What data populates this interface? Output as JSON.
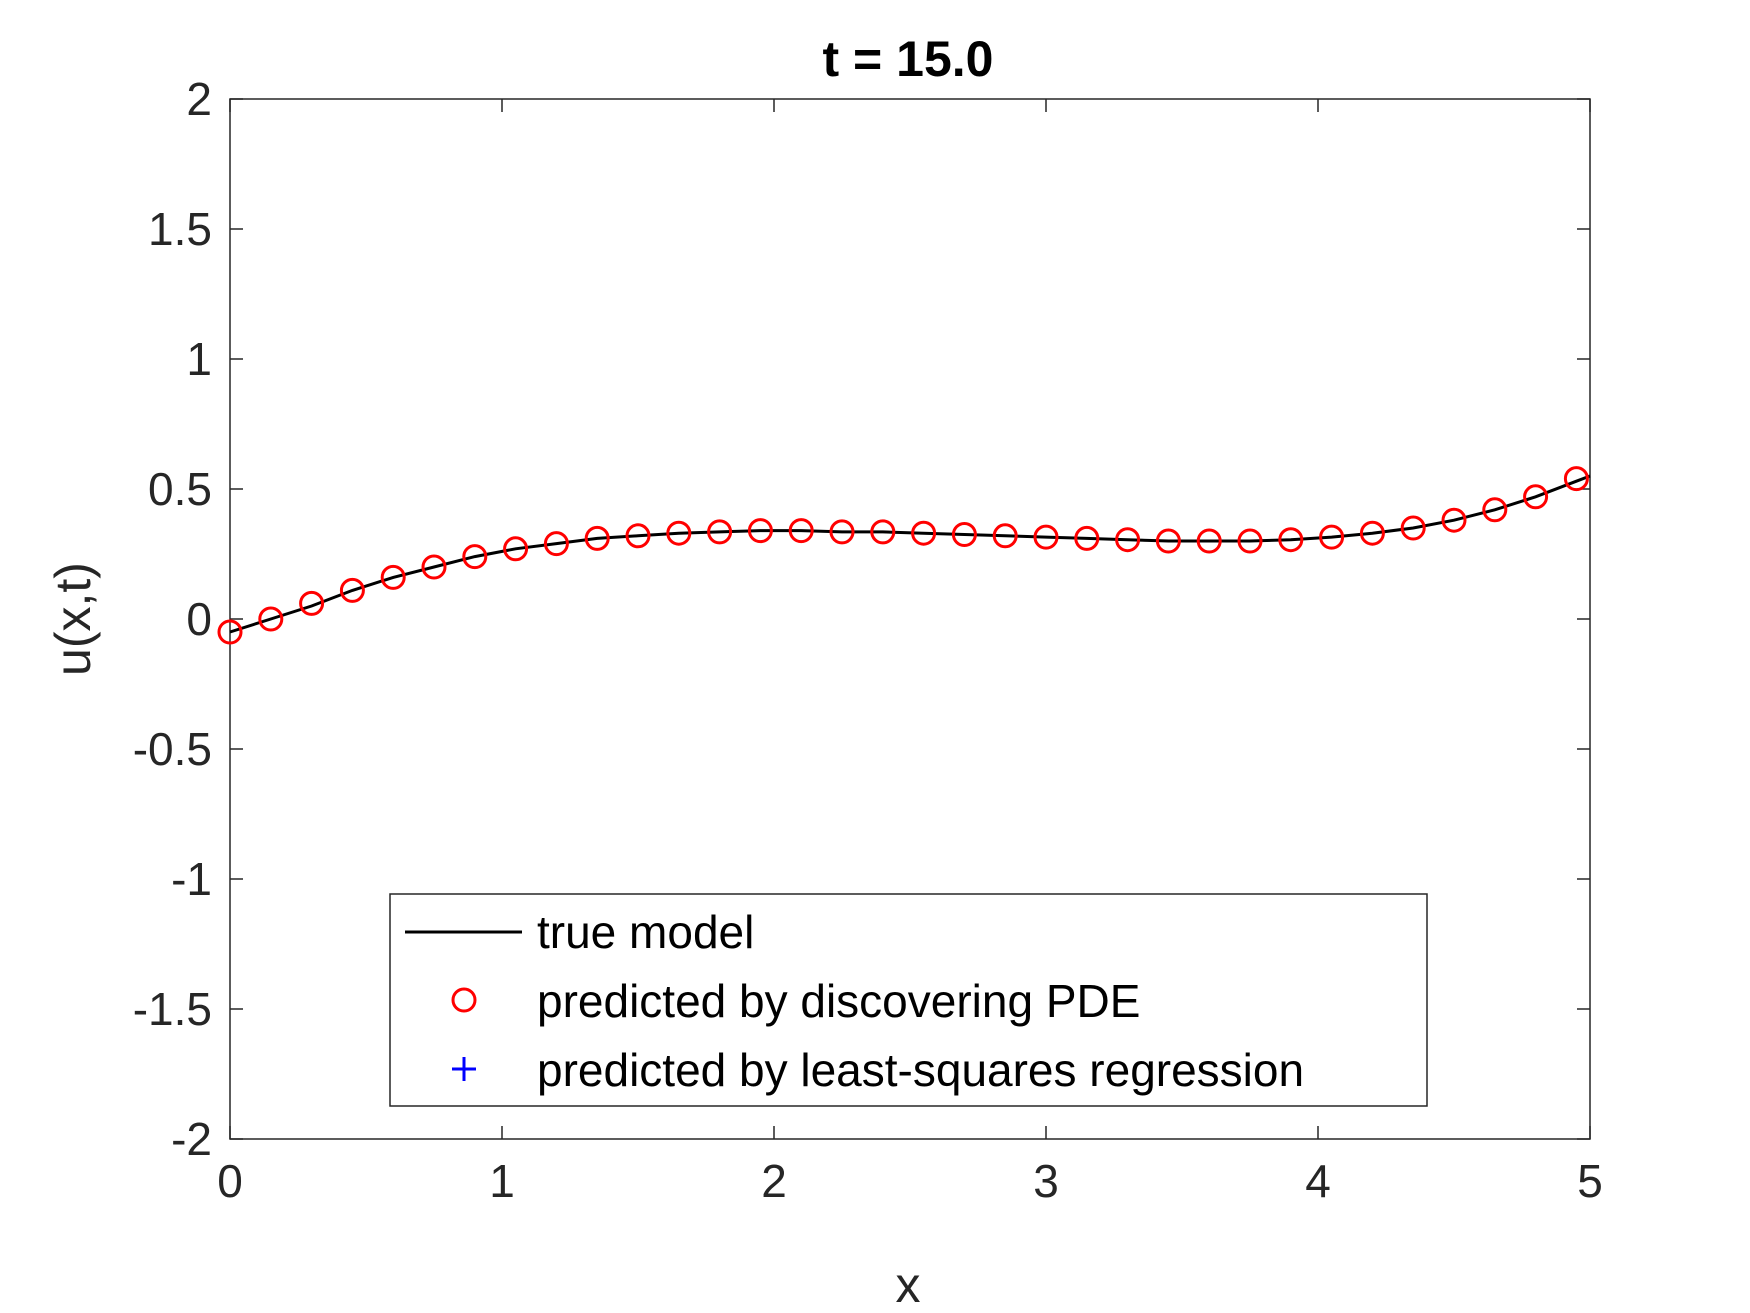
{
  "chart_data": {
    "type": "line",
    "title": "t = 15.0",
    "xlabel": "x",
    "ylabel": "u(x,t)",
    "xlim": [
      0,
      5
    ],
    "ylim": [
      -2,
      2
    ],
    "xticks": [
      0,
      1,
      2,
      3,
      4,
      5
    ],
    "xtick_labels": [
      "0",
      "1",
      "2",
      "3",
      "4",
      "5"
    ],
    "yticks": [
      -2,
      -1.5,
      -1,
      -0.5,
      0,
      0.5,
      1,
      1.5,
      2
    ],
    "ytick_labels": [
      "-2",
      "-1.5",
      "-1",
      "-0.5",
      "0",
      "0.5",
      "1",
      "1.5",
      "2"
    ],
    "grid": false,
    "legend_position": "bottom-center",
    "colors": {
      "true_model": "#000000",
      "discovered_pde": "#ff0000",
      "least_squares": "#0000ff"
    },
    "series": [
      {
        "name": "true model",
        "style": "line",
        "x": [
          0,
          0.15,
          0.3,
          0.45,
          0.6,
          0.75,
          0.9,
          1.05,
          1.2,
          1.35,
          1.5,
          1.65,
          1.8,
          1.95,
          2.1,
          2.25,
          2.4,
          2.55,
          2.7,
          2.85,
          3.0,
          3.15,
          3.3,
          3.45,
          3.6,
          3.75,
          3.9,
          4.05,
          4.2,
          4.35,
          4.5,
          4.65,
          4.8,
          4.95,
          5.0
        ],
        "y": [
          -0.05,
          0.0,
          0.05,
          0.11,
          0.16,
          0.2,
          0.24,
          0.27,
          0.29,
          0.31,
          0.32,
          0.33,
          0.335,
          0.34,
          0.34,
          0.335,
          0.335,
          0.33,
          0.325,
          0.32,
          0.315,
          0.31,
          0.305,
          0.3,
          0.3,
          0.3,
          0.305,
          0.315,
          0.33,
          0.35,
          0.38,
          0.42,
          0.47,
          0.53,
          0.55
        ]
      },
      {
        "name": "predicted by discovering PDE",
        "style": "marker-circle",
        "x": [
          0,
          0.15,
          0.3,
          0.45,
          0.6,
          0.75,
          0.9,
          1.05,
          1.2,
          1.35,
          1.5,
          1.65,
          1.8,
          1.95,
          2.1,
          2.25,
          2.4,
          2.55,
          2.7,
          2.85,
          3.0,
          3.15,
          3.3,
          3.45,
          3.6,
          3.75,
          3.9,
          4.05,
          4.2,
          4.35,
          4.5,
          4.65,
          4.8,
          4.95
        ],
        "y": [
          -0.05,
          0.0,
          0.06,
          0.11,
          0.16,
          0.2,
          0.24,
          0.27,
          0.29,
          0.31,
          0.32,
          0.33,
          0.335,
          0.34,
          0.34,
          0.335,
          0.335,
          0.33,
          0.325,
          0.32,
          0.315,
          0.31,
          0.305,
          0.3,
          0.3,
          0.3,
          0.305,
          0.315,
          0.33,
          0.35,
          0.38,
          0.42,
          0.47,
          0.54
        ]
      },
      {
        "name": "predicted by least-squares regression",
        "style": "marker-plus",
        "x": [],
        "y": []
      }
    ]
  }
}
